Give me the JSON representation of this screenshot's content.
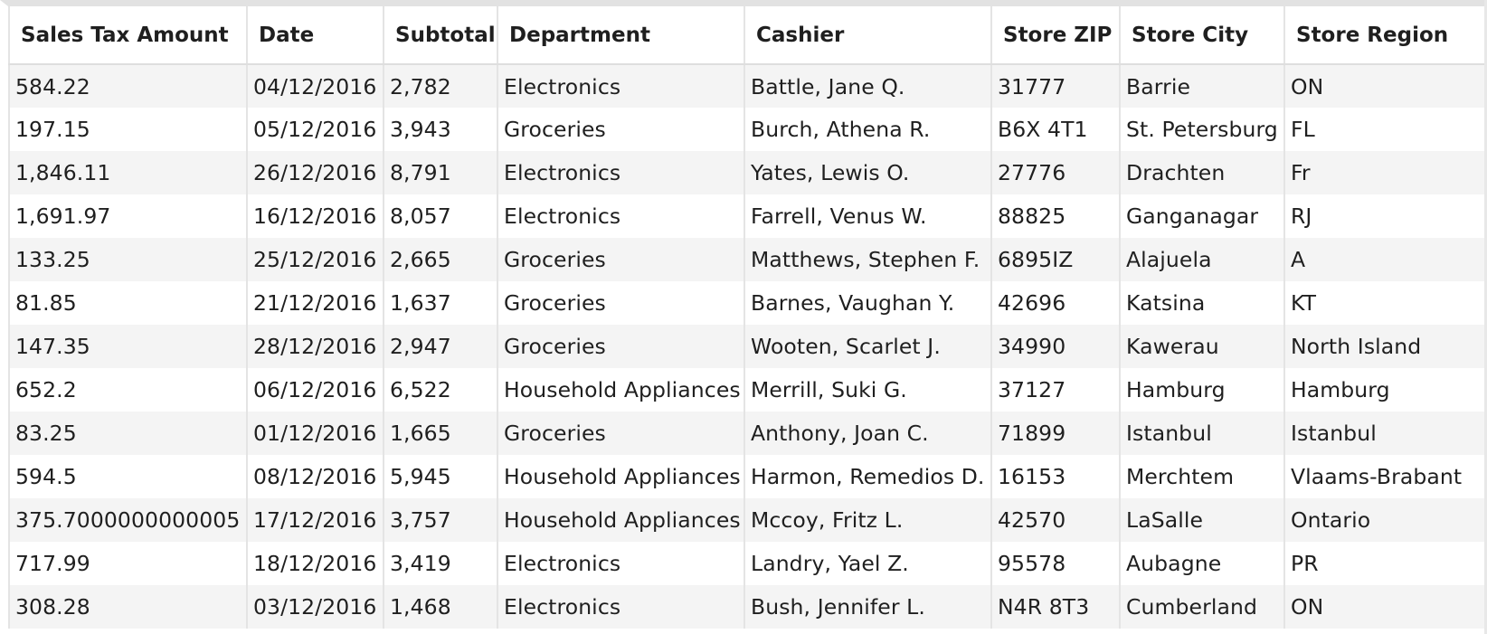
{
  "table": {
    "columns": [
      "Sales Tax Amount",
      "Date",
      "Subtotal",
      "Department",
      "Cashier",
      "Store ZIP",
      "Store City",
      "Store Region"
    ],
    "rows": [
      [
        "584.22",
        "04/12/2016",
        "2,782",
        "Electronics",
        "Battle, Jane Q.",
        "31777",
        "Barrie",
        "ON"
      ],
      [
        "197.15",
        "05/12/2016",
        "3,943",
        "Groceries",
        "Burch, Athena R.",
        "B6X 4T1",
        "St. Petersburg",
        "FL"
      ],
      [
        "1,846.11",
        "26/12/2016",
        "8,791",
        "Electronics",
        "Yates, Lewis O.",
        "27776",
        "Drachten",
        "Fr"
      ],
      [
        "1,691.97",
        "16/12/2016",
        "8,057",
        "Electronics",
        "Farrell, Venus W.",
        "88825",
        "Ganganagar",
        "RJ"
      ],
      [
        "133.25",
        "25/12/2016",
        "2,665",
        "Groceries",
        "Matthews, Stephen F.",
        "6895IZ",
        "Alajuela",
        "A"
      ],
      [
        "81.85",
        "21/12/2016",
        "1,637",
        "Groceries",
        "Barnes, Vaughan Y.",
        "42696",
        "Katsina",
        "KT"
      ],
      [
        "147.35",
        "28/12/2016",
        "2,947",
        "Groceries",
        "Wooten, Scarlet J.",
        "34990",
        "Kawerau",
        "North Island"
      ],
      [
        "652.2",
        "06/12/2016",
        "6,522",
        "Household Appliances",
        "Merrill, Suki G.",
        "37127",
        "Hamburg",
        "Hamburg"
      ],
      [
        "83.25",
        "01/12/2016",
        "1,665",
        "Groceries",
        "Anthony, Joan C.",
        "71899",
        "Istanbul",
        "Istanbul"
      ],
      [
        "594.5",
        "08/12/2016",
        "5,945",
        "Household Appliances",
        "Harmon, Remedios D.",
        "16153",
        "Merchtem",
        "Vlaams-Brabant"
      ],
      [
        "375.7000000000005",
        "17/12/2016",
        "3,757",
        "Household Appliances",
        "Mccoy, Fritz L.",
        "42570",
        "LaSalle",
        "Ontario"
      ],
      [
        "717.99",
        "18/12/2016",
        "3,419",
        "Electronics",
        "Landry, Yael Z.",
        "95578",
        "Aubagne",
        "PR"
      ],
      [
        "308.28",
        "03/12/2016",
        "1,468",
        "Electronics",
        "Bush, Jennifer L.",
        "N4R 8T3",
        "Cumberland",
        "ON"
      ]
    ]
  }
}
